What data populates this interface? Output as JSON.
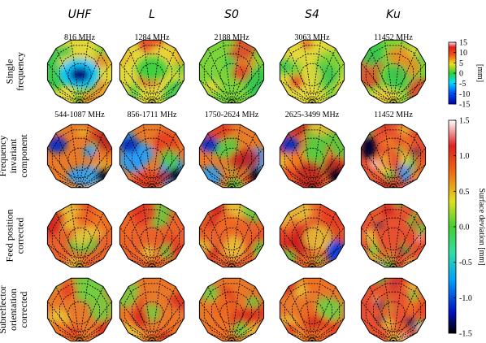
{
  "columns": [
    "UHF",
    "L",
    "S0",
    "S4",
    "Ku"
  ],
  "rows": [
    [
      "Single",
      "frequency"
    ],
    [
      "Frequency",
      "invariant",
      "component"
    ],
    [
      "Feed position",
      "corrected"
    ],
    [
      "Subreflector",
      "orientation",
      "corrected"
    ]
  ],
  "single_frequencies": [
    "816 MHz",
    "1284 MHz",
    "2188 MHz",
    "3063 MHz",
    "11452 MHz"
  ],
  "band_frequencies": [
    "544-1087 MHz",
    "856-1711 MHz",
    "1750-2624 MHz",
    "2625-3499 MHz",
    "11452 MHz"
  ],
  "colorbars": [
    {
      "label": "[mm]",
      "lim": [
        -15,
        15
      ],
      "ticks": [
        15,
        10,
        5,
        0,
        -5,
        -10,
        -15
      ]
    },
    {
      "label": "Surface deviation [mm]",
      "lim": [
        -1.5,
        1.5
      ],
      "ticks": [
        1.5,
        {
          "value": 1.0,
          "label": "1.0"
        },
        0.5,
        {
          "value": 0,
          "label": "0.0"
        },
        -0.5,
        {
          "value": -1.0,
          "label": "-1.0"
        },
        -1.5
      ]
    }
  ]
}
